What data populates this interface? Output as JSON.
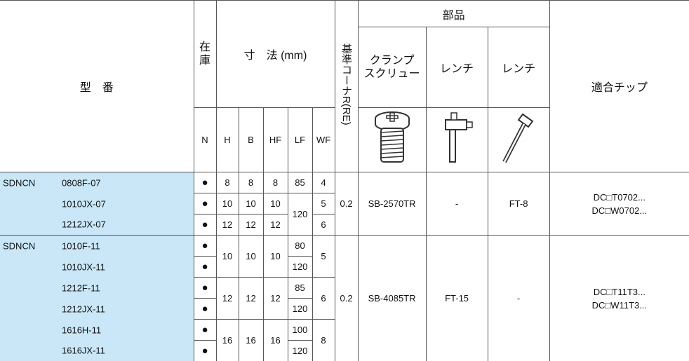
{
  "header": {
    "model": "型　番",
    "stock": [
      "在",
      "庫"
    ],
    "dimensions": "寸　法 (mm)",
    "corner": "基準コーナR(RE)",
    "parts": "部品",
    "clamp_screw": [
      "クランプ",
      "スクリュー"
    ],
    "wrench_1": "レンチ",
    "wrench_2": "レンチ",
    "chips": "適合チップ",
    "subheaders": [
      "N",
      "H",
      "B",
      "HF",
      "LF",
      "WF"
    ]
  },
  "body": {
    "groups": [
      {
        "series": "SDNCN",
        "models": [
          "0808F-07",
          "1010JX-07",
          "1212JX-07"
        ],
        "stock": [
          "●",
          "●",
          "●"
        ],
        "dimensions": {
          "h": [
            8,
            10,
            12
          ],
          "b": [
            8,
            10,
            12
          ],
          "hf": [
            8,
            10,
            12
          ],
          "lf": [
            85,
            120,
            null
          ],
          "wf": [
            4,
            5,
            6
          ]
        },
        "corner": 0.2,
        "clamp_screw": "SB-2570TR",
        "wrench_1": "-",
        "wrench_2": "FT-8",
        "chips": [
          "DC□T0702...",
          "DC□W0702..."
        ]
      },
      {
        "series": "SDNCN",
        "models": [
          "1010F-11",
          "1010JX-11",
          "1212F-11",
          "1212JX-11",
          "1616H-11",
          "1616JX-11"
        ],
        "stock": [
          "●",
          "●",
          "●",
          "●",
          "●",
          "●"
        ],
        "dimensions": {
          "h": [
            10,
            null,
            12,
            null,
            16,
            null
          ],
          "b": [
            10,
            null,
            12,
            null,
            16,
            null
          ],
          "hf": [
            10,
            null,
            12,
            null,
            16,
            null
          ],
          "lf": [
            80,
            120,
            85,
            120,
            100,
            120
          ],
          "wf": [
            5,
            null,
            6,
            null,
            8,
            null
          ]
        },
        "corner": 0.2,
        "clamp_screw": "SB-4085TR",
        "wrench_1": "FT-15",
        "wrench_2": "-",
        "chips": [
          "DC□T11T3...",
          "DC□W11T3..."
        ]
      }
    ]
  }
}
